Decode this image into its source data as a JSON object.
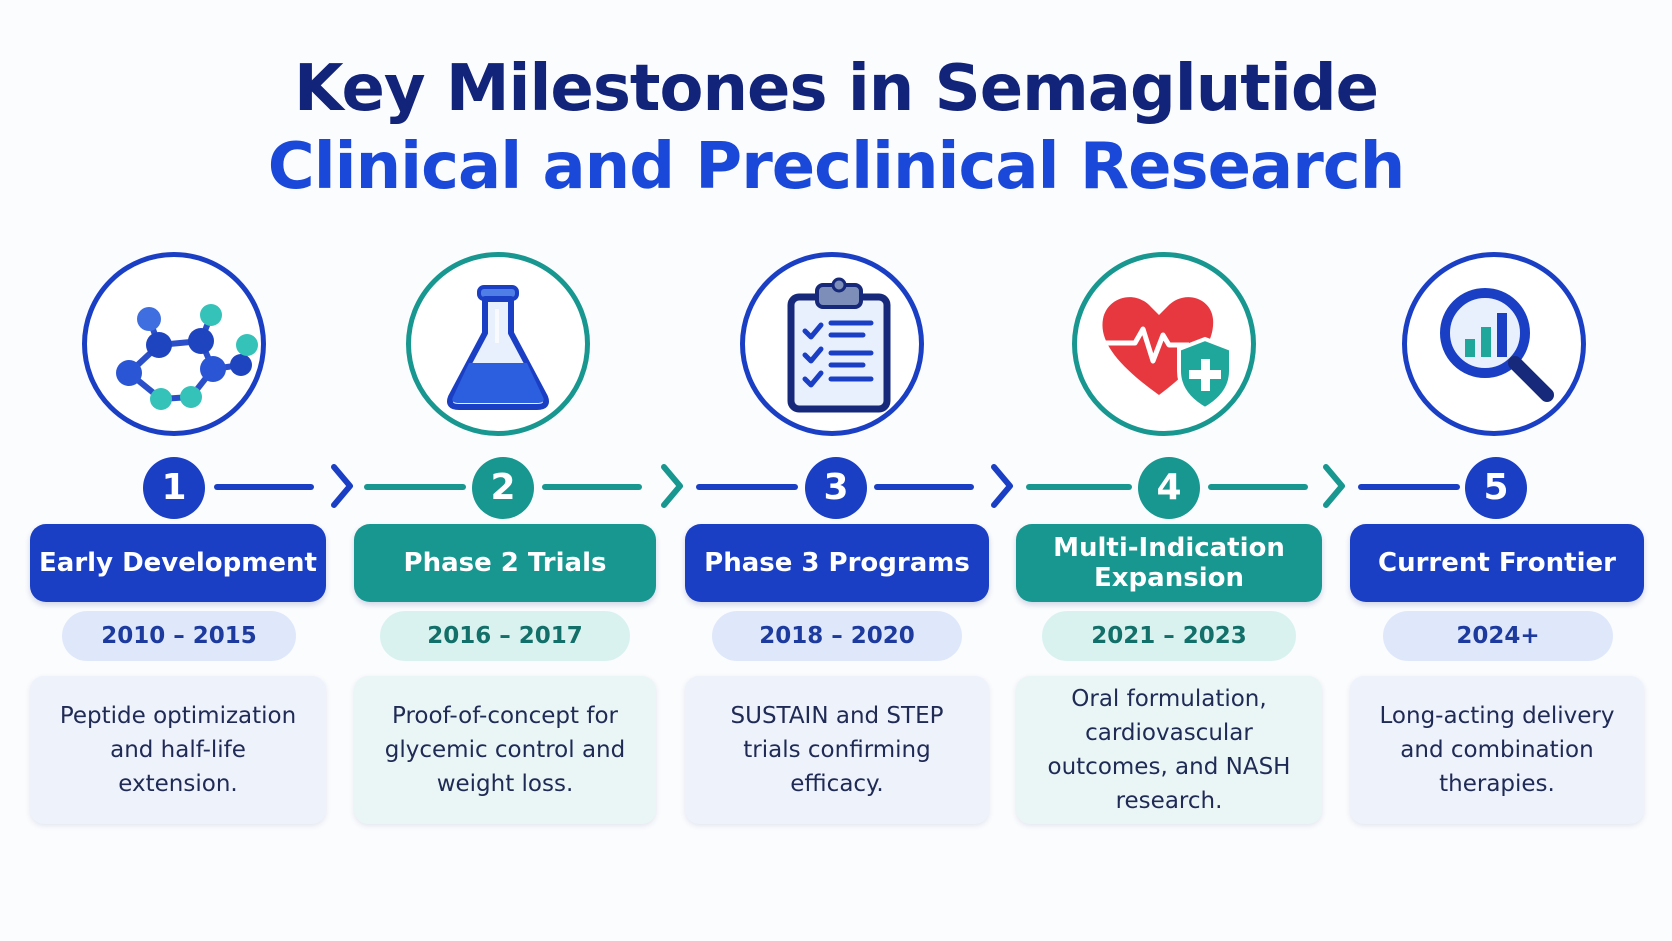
{
  "title": {
    "line1": "Key Milestones in Semaglutide",
    "line2": "Clinical and Preclinical Research"
  },
  "milestones": [
    {
      "number": "1",
      "label": "Early Development",
      "years": "2010 – 2015",
      "description": "Peptide optimization and half-life extension.",
      "icon": "molecule-icon",
      "theme": "blue"
    },
    {
      "number": "2",
      "label": "Phase 2 Trials",
      "years": "2016 – 2017",
      "description": "Proof-of-concept for glycemic control and weight loss.",
      "icon": "flask-icon",
      "theme": "teal"
    },
    {
      "number": "3",
      "label": "Phase 3 Programs",
      "years": "2018 – 2020",
      "description": "SUSTAIN and STEP trials confirming efficacy.",
      "icon": "clipboard-checklist-icon",
      "theme": "blue"
    },
    {
      "number": "4",
      "label": "Multi-Indication Expansion",
      "years": "2021 – 2023",
      "description": "Oral formulation, cardiovascular outcomes, and NASH research.",
      "icon": "heart-shield-icon",
      "theme": "teal"
    },
    {
      "number": "5",
      "label": "Current Frontier",
      "years": "2024+",
      "description": "Long-acting delivery and combination therapies.",
      "icon": "magnifier-chart-icon",
      "theme": "blue"
    }
  ],
  "colors": {
    "navy": "#12237a",
    "blue": "#1a3fc4",
    "teal": "#17978f",
    "red": "#e8383f"
  }
}
